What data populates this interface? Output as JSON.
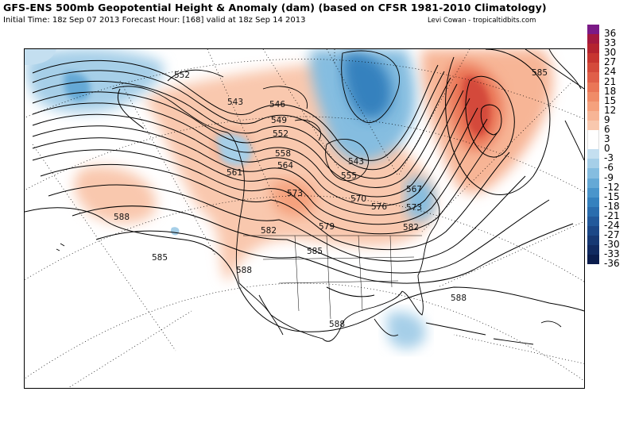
{
  "title": "GFS-ENS 500mb Geopotential Height & Anomaly (dam) (based on CFSR 1981-2010 Climatology)",
  "subtitle": "Initial Time: 18z Sep 07 2013 Forecast Hour: [168] valid at 18z Sep 14 2013",
  "credit": "Levi Cowan - tropicaltidbits.com",
  "colorbar": [
    {
      "label": "36",
      "color": "#7b1a86"
    },
    {
      "label": "33",
      "color": "#a3193f"
    },
    {
      "label": "30",
      "color": "#b4232f"
    },
    {
      "label": "27",
      "color": "#c73530"
    },
    {
      "label": "24",
      "color": "#d44a3b"
    },
    {
      "label": "21",
      "color": "#e05f49"
    },
    {
      "label": "18",
      "color": "#ea7657"
    },
    {
      "label": "15",
      "color": "#f08c68"
    },
    {
      "label": "12",
      "color": "#f5a17d"
    },
    {
      "label": "9",
      "color": "#f7b596"
    },
    {
      "label": "6",
      "color": "#f9c8ae"
    },
    {
      "label": "3",
      "color": "#ffffff"
    },
    {
      "label": "0",
      "color": "#ffffff"
    },
    {
      "label": "-3",
      "color": "#c4dff0"
    },
    {
      "label": "-6",
      "color": "#a6cfe8"
    },
    {
      "label": "-9",
      "color": "#85bde0"
    },
    {
      "label": "-12",
      "color": "#65a9d6"
    },
    {
      "label": "-15",
      "color": "#4a95cb"
    },
    {
      "label": "-18",
      "color": "#3581be"
    },
    {
      "label": "-21",
      "color": "#2a6dae"
    },
    {
      "label": "-24",
      "color": "#22599b"
    },
    {
      "label": "-27",
      "color": "#1b4787"
    },
    {
      "label": "-30",
      "color": "#163873"
    },
    {
      "label": "-33",
      "color": "#112a60"
    },
    {
      "label": "-36",
      "color": "#0b1d4d"
    }
  ],
  "contour_labels": [
    "552",
    "543",
    "546",
    "549",
    "552",
    "558",
    "561",
    "564",
    "555",
    "543",
    "567",
    "570",
    "573",
    "576",
    "573",
    "579",
    "582",
    "582",
    "585",
    "585",
    "588",
    "588",
    "588",
    "588",
    "585"
  ]
}
